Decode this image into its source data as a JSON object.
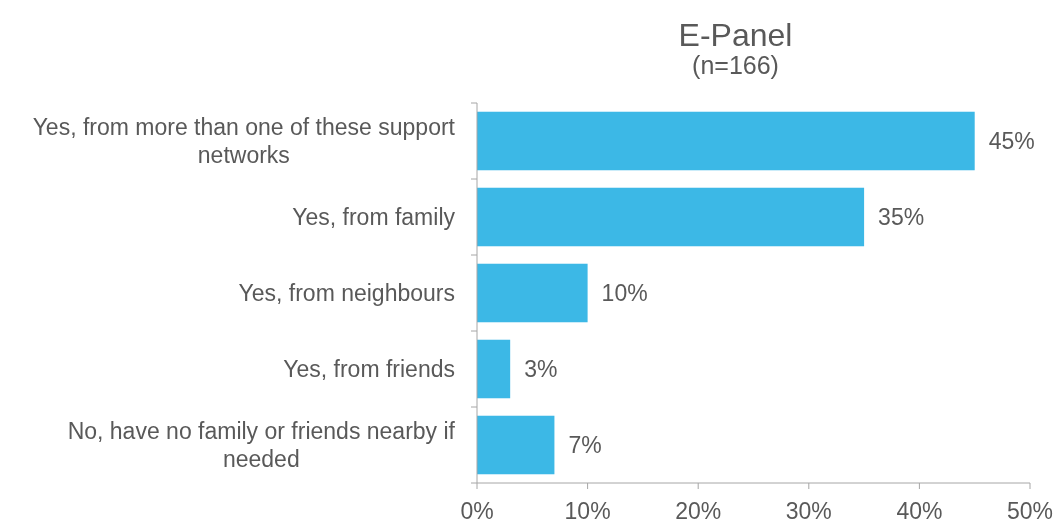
{
  "chart_data": {
    "type": "bar",
    "orientation": "horizontal",
    "title": "E-Panel",
    "subtitle": "(n=166)",
    "categories": [
      "Yes, from more than one of these support networks",
      "Yes, from family",
      "Yes, from neighbours",
      "Yes, from friends",
      "No, have no family or friends nearby if needed"
    ],
    "values": [
      45,
      35,
      10,
      3,
      7
    ],
    "color": "#3cb8e6",
    "xlim": [
      0,
      50
    ],
    "xticks": [
      {
        "value": 0,
        "label": "0%"
      },
      {
        "value": 10,
        "label": "10%"
      },
      {
        "value": 20,
        "label": "20%"
      },
      {
        "value": 30,
        "label": "30%"
      },
      {
        "value": 40,
        "label": "40%"
      },
      {
        "value": 50,
        "label": "50%"
      }
    ],
    "value_labels": [
      "45%",
      "35%",
      "10%",
      "3%",
      "7%"
    ]
  }
}
